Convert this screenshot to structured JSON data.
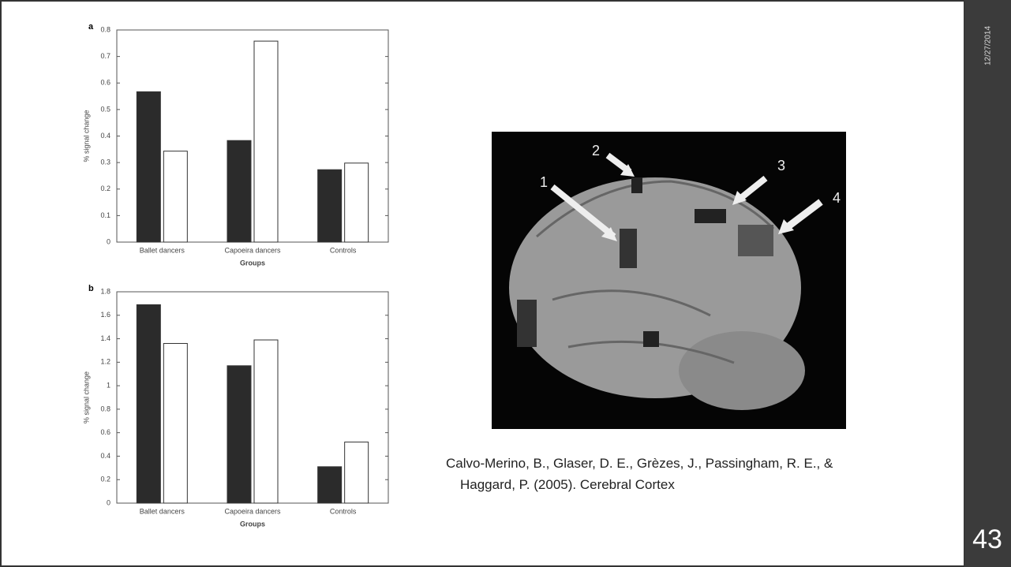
{
  "slide": {
    "date": "12/27/2014",
    "page_number": "43",
    "citation": [
      "Calvo-Merino, B., Glaser, D. E., Grèzes, J., Passingham, R. E., &",
      "Haggard, P. (2005).  Cerebral Cortex"
    ]
  },
  "brain_image": {
    "labels": [
      "1",
      "2",
      "3",
      "4"
    ]
  },
  "chart_data": [
    {
      "type": "bar",
      "panel": "a",
      "ylabel": "% signal change",
      "xlabel": "Groups",
      "categories": [
        "Ballet dancers",
        "Capoeira dancers",
        "Controls"
      ],
      "series": [
        {
          "color": "#2b2b2b",
          "values": [
            0.567,
            0.383,
            0.273
          ]
        },
        {
          "color": "#ffffff",
          "values": [
            0.343,
            0.758,
            0.298
          ]
        }
      ],
      "ylim": [
        0,
        0.8
      ],
      "yticks": [
        0,
        0.1,
        0.2,
        0.3,
        0.4,
        0.5,
        0.6,
        0.7,
        0.8
      ]
    },
    {
      "type": "bar",
      "panel": "b",
      "ylabel": "% signal change",
      "xlabel": "Groups",
      "categories": [
        "Ballet dancers",
        "Capoeira dancers",
        "Controls"
      ],
      "series": [
        {
          "color": "#2b2b2b",
          "values": [
            1.69,
            1.17,
            0.31
          ]
        },
        {
          "color": "#ffffff",
          "values": [
            1.36,
            1.39,
            0.52
          ]
        }
      ],
      "ylim": [
        0,
        1.8
      ],
      "yticks": [
        0,
        0.2,
        0.4,
        0.6,
        0.8,
        1,
        1.2,
        1.4,
        1.6,
        1.8
      ]
    }
  ]
}
